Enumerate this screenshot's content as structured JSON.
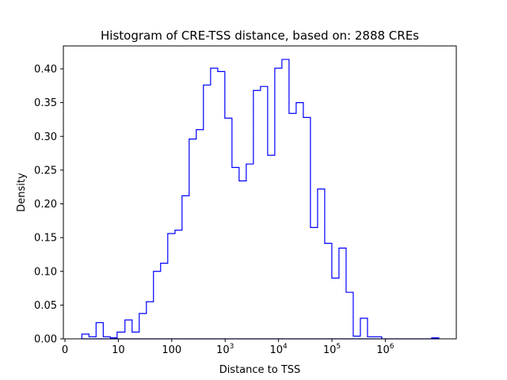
{
  "chart_data": {
    "type": "histogram",
    "title": "Histogram of CRE-TSS distance, based on: 2888 CREs",
    "xlabel": "Distance to TSS",
    "ylabel": "Density",
    "xscale": "symlog",
    "xlim": [
      -0.3,
      21600000
    ],
    "ylim": [
      0,
      0.434
    ],
    "grid": false,
    "line_color": "#0000ff",
    "histtype": "step",
    "bin_edges": [
      3.16,
      4.5,
      5.83,
      7.17,
      8.5,
      9.77,
      13.3,
      18.1,
      24.6,
      33.5,
      45.5,
      61.9,
      84.2,
      115,
      156,
      212,
      288,
      392,
      534,
      726,
      987,
      1343,
      1827,
      2485,
      3380,
      4596,
      6252,
      8505,
      11570,
      15740,
      21400,
      29110,
      39600,
      53850,
      73250,
      99600,
      135500,
      184300,
      250700,
      340900,
      463700,
      630700,
      857700,
      1167000,
      1587000,
      2158000,
      2935000,
      3992000,
      5430000,
      7385000,
      10040000
    ],
    "density": [
      0.007,
      0.003,
      0.024,
      0.003,
      0.0015,
      0.01,
      0.028,
      0.01,
      0.0375,
      0.055,
      0.1,
      0.112,
      0.156,
      0.161,
      0.212,
      0.296,
      0.31,
      0.376,
      0.401,
      0.396,
      0.327,
      0.254,
      0.234,
      0.259,
      0.368,
      0.374,
      0.272,
      0.401,
      0.414,
      0.334,
      0.35,
      0.328,
      0.165,
      0.222,
      0.1415,
      0.09,
      0.1345,
      0.069,
      0.004,
      0.0305,
      0.003,
      0.003,
      0,
      0,
      0,
      0,
      0,
      0,
      0,
      0.0015
    ],
    "x_ticks": [
      {
        "value": 0,
        "base": "0",
        "exp": ""
      },
      {
        "value": 10,
        "base": "10",
        "exp": ""
      },
      {
        "value": 100,
        "base": "100",
        "exp": ""
      },
      {
        "value": 1000,
        "base": "10",
        "exp": "3"
      },
      {
        "value": 10000,
        "base": "10",
        "exp": "4"
      },
      {
        "value": 100000,
        "base": "10",
        "exp": "5"
      },
      {
        "value": 1000000,
        "base": "10",
        "exp": "6"
      }
    ],
    "y_ticks": [
      {
        "value": 0,
        "label": "0.00"
      },
      {
        "value": 0.05,
        "label": "0.05"
      },
      {
        "value": 0.1,
        "label": "0.10"
      },
      {
        "value": 0.15,
        "label": "0.15"
      },
      {
        "value": 0.2,
        "label": "0.20"
      },
      {
        "value": 0.25,
        "label": "0.25"
      },
      {
        "value": 0.3,
        "label": "0.30"
      },
      {
        "value": 0.35,
        "label": "0.35"
      },
      {
        "value": 0.4,
        "label": "0.40"
      }
    ]
  }
}
